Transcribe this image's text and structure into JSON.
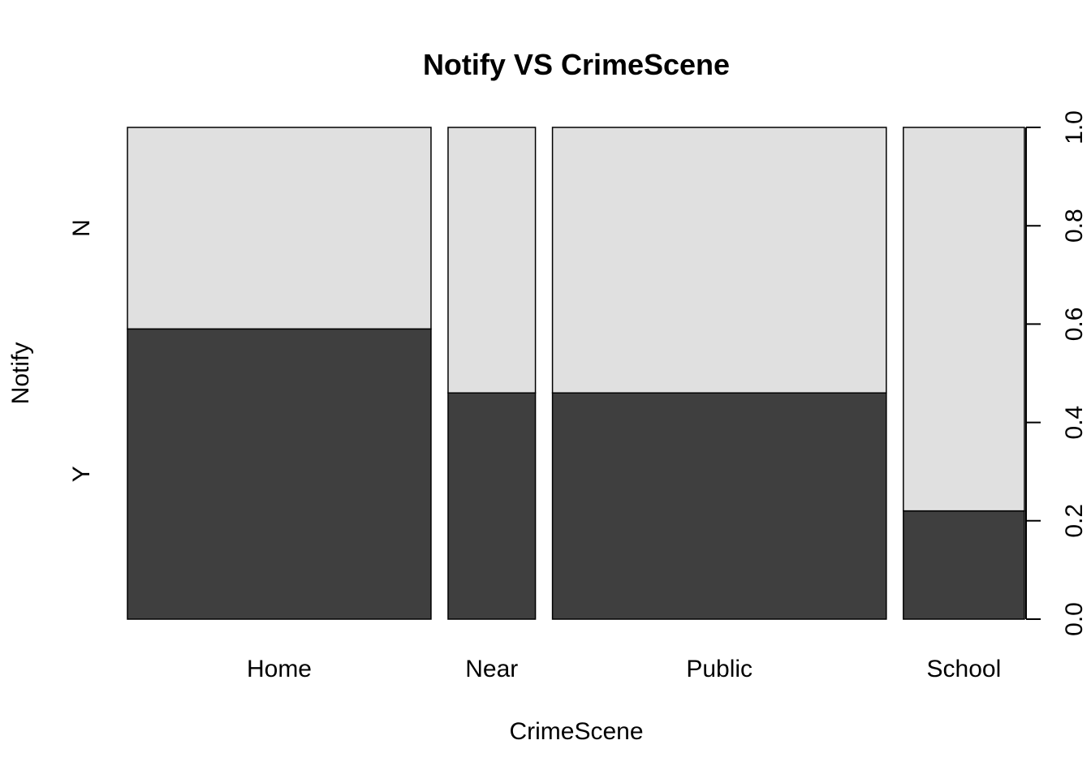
{
  "chart_data": {
    "type": "spineplot",
    "title": "Notify VS CrimeScene",
    "xlabel": "CrimeScene",
    "ylabel": "Notify",
    "categories": [
      "Home",
      "Near",
      "Public",
      "School"
    ],
    "category_widths": [
      0.351,
      0.101,
      0.386,
      0.14
    ],
    "levels": [
      "Y",
      "N"
    ],
    "series": [
      {
        "name": "Y",
        "values": [
          0.59,
          0.46,
          0.46,
          0.22
        ]
      },
      {
        "name": "N",
        "values": [
          0.41,
          0.54,
          0.54,
          0.78
        ]
      }
    ],
    "colors": {
      "Y": "#3f3f3f",
      "N": "#e0e0e0",
      "border": "#000000"
    },
    "right_axis": {
      "ylim": [
        0,
        1
      ],
      "ticks": [
        "0.0",
        "0.2",
        "0.4",
        "0.6",
        "0.8",
        "1.0"
      ]
    },
    "grid": false,
    "legend": "none"
  }
}
